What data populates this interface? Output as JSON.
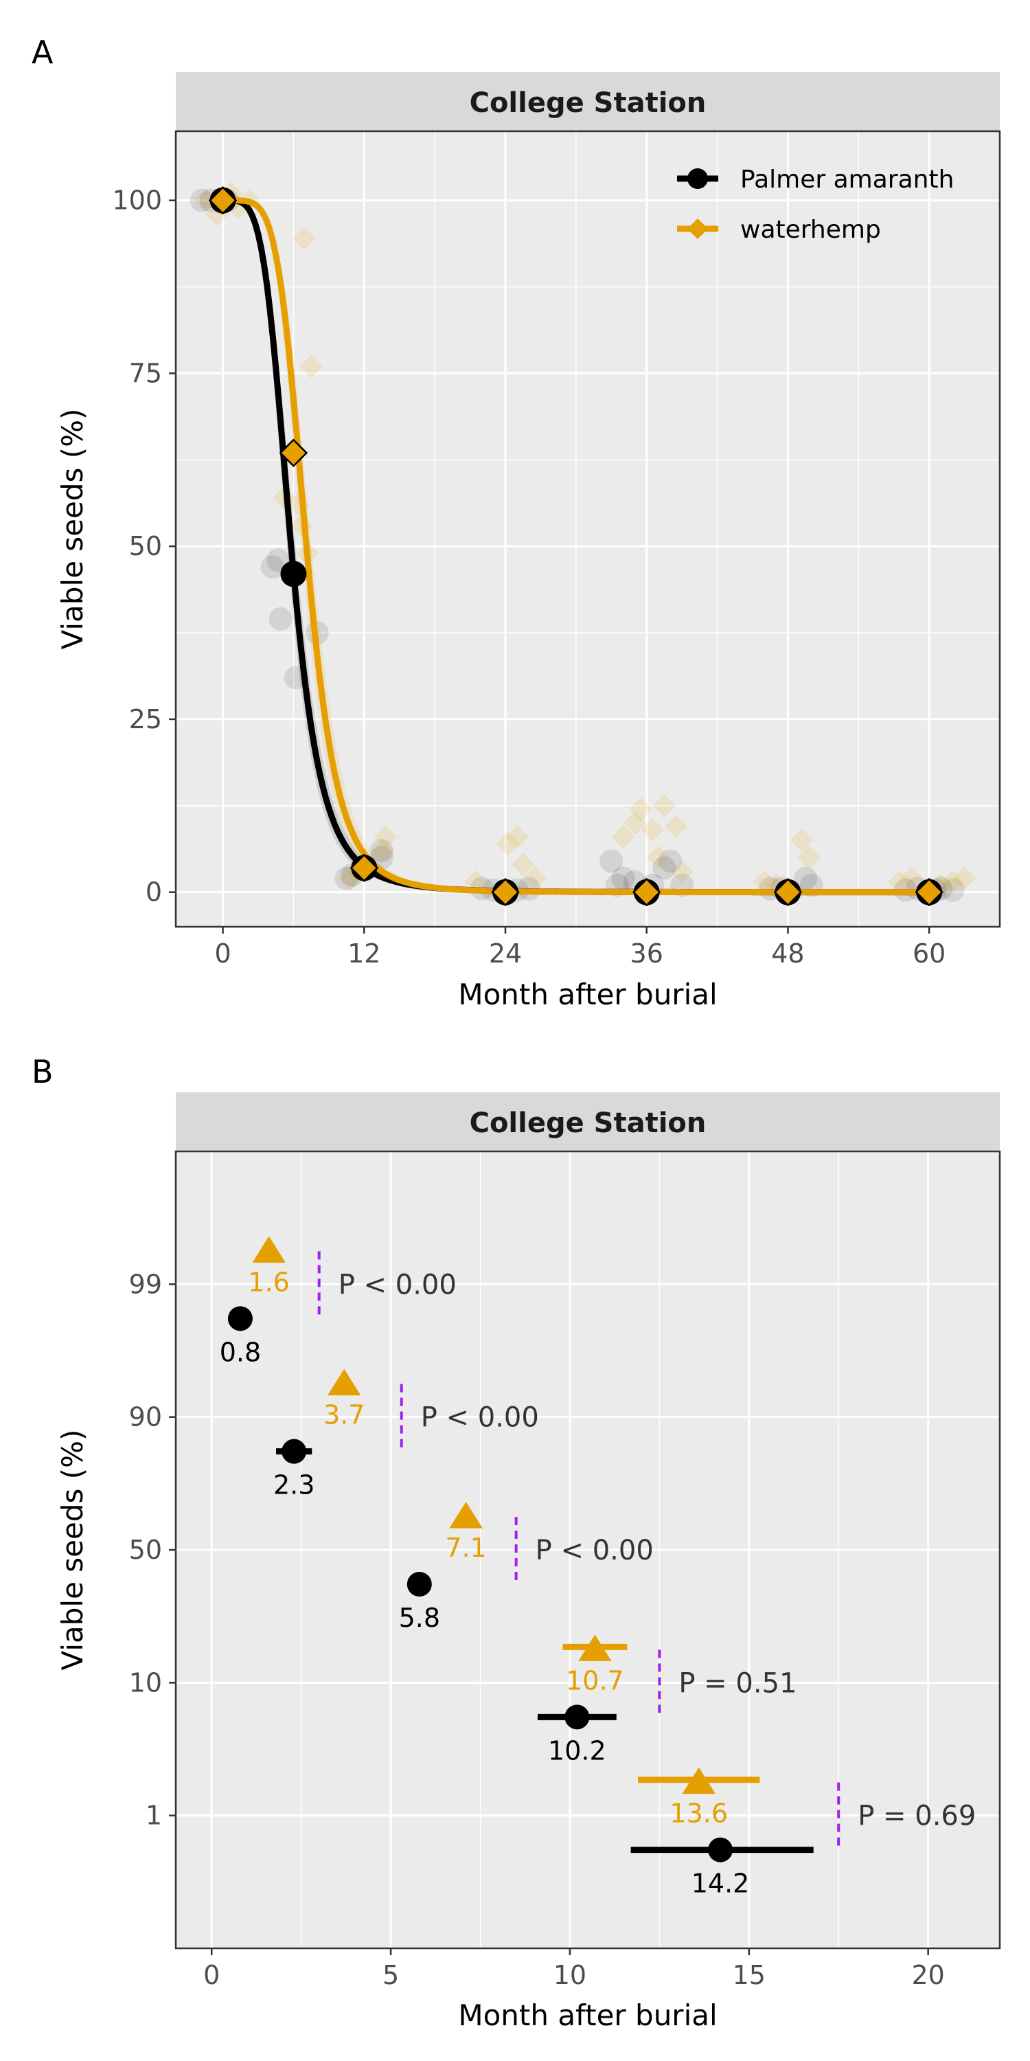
{
  "colors": {
    "palmer": "#000000",
    "waterhemp": "#E69F00",
    "pvalue_line": "#A020F0",
    "panel_bg": "#EBEBEB",
    "strip_bg": "#D9D9D9",
    "grid": "#FFFFFF"
  },
  "chart_data": [
    {
      "type": "scatter",
      "panel_label": "A",
      "strip_title": "College Station",
      "xlabel": "Month after burial",
      "ylabel": "Viable seeds (%)",
      "xlim": [
        -4,
        66
      ],
      "ylim": [
        -5,
        110
      ],
      "x_ticks": [
        0,
        12,
        24,
        36,
        48,
        60
      ],
      "y_ticks": [
        0,
        25,
        50,
        75,
        100
      ],
      "grid": true,
      "legend_position": "top-right",
      "legend": [
        "Palmer amaranth",
        "waterhemp"
      ],
      "series": [
        {
          "name": "Palmer amaranth",
          "marker": "circle",
          "fit": {
            "model": "log-logistic",
            "e50": 5.8,
            "slope": 4.5
          },
          "means": [
            {
              "x": 0,
              "y": 100
            },
            {
              "x": 6,
              "y": 46
            },
            {
              "x": 12,
              "y": 3.5
            },
            {
              "x": 24,
              "y": 0
            },
            {
              "x": 36,
              "y": 0
            },
            {
              "x": 48,
              "y": 0
            },
            {
              "x": 60,
              "y": 0
            }
          ],
          "raw": [
            {
              "x": -1.8,
              "y": 100
            },
            {
              "x": -1,
              "y": 100
            },
            {
              "x": 0.4,
              "y": 100
            },
            {
              "x": 4.2,
              "y": 47
            },
            {
              "x": 4.7,
              "y": 48
            },
            {
              "x": 4.9,
              "y": 39.5
            },
            {
              "x": 6.2,
              "y": 31
            },
            {
              "x": 8,
              "y": 37.5
            },
            {
              "x": 10.5,
              "y": 2
            },
            {
              "x": 11,
              "y": 2.5
            },
            {
              "x": 13.5,
              "y": 6
            },
            {
              "x": 13.5,
              "y": 5
            },
            {
              "x": 22,
              "y": 0.5
            },
            {
              "x": 23,
              "y": 0.3
            },
            {
              "x": 25,
              "y": 0.3
            },
            {
              "x": 26,
              "y": 0.5
            },
            {
              "x": 33,
              "y": 4.5
            },
            {
              "x": 33.5,
              "y": 1
            },
            {
              "x": 34,
              "y": 2
            },
            {
              "x": 35,
              "y": 1.5
            },
            {
              "x": 36.5,
              "y": 1
            },
            {
              "x": 37.5,
              "y": 3.5
            },
            {
              "x": 38,
              "y": 4.5
            },
            {
              "x": 39,
              "y": 1
            },
            {
              "x": 46.5,
              "y": 0.5
            },
            {
              "x": 47.5,
              "y": 0.5
            },
            {
              "x": 49.5,
              "y": 2
            },
            {
              "x": 50,
              "y": 1
            },
            {
              "x": 58,
              "y": 0.3
            },
            {
              "x": 59,
              "y": 0.5
            },
            {
              "x": 60.5,
              "y": 0.3
            },
            {
              "x": 61,
              "y": 0.5
            },
            {
              "x": 62,
              "y": 0.3
            }
          ]
        },
        {
          "name": "waterhemp",
          "marker": "diamond",
          "fit": {
            "model": "log-logistic",
            "e50": 7.1,
            "slope": 5.4
          },
          "means": [
            {
              "x": 0,
              "y": 100
            },
            {
              "x": 6,
              "y": 63.5
            },
            {
              "x": 12,
              "y": 3.5
            },
            {
              "x": 24,
              "y": 0
            },
            {
              "x": 36,
              "y": 0
            },
            {
              "x": 48,
              "y": 0
            },
            {
              "x": 60,
              "y": 0
            }
          ],
          "raw": [
            {
              "x": -1.5,
              "y": 100
            },
            {
              "x": -0.5,
              "y": 98
            },
            {
              "x": 0.7,
              "y": 101
            },
            {
              "x": 1.3,
              "y": 99
            },
            {
              "x": 2.2,
              "y": 100
            },
            {
              "x": 5.2,
              "y": 57
            },
            {
              "x": 6.4,
              "y": 56
            },
            {
              "x": 6.7,
              "y": 53
            },
            {
              "x": 6.9,
              "y": 94.5
            },
            {
              "x": 7.5,
              "y": 76
            },
            {
              "x": 7.2,
              "y": 49
            },
            {
              "x": 10.8,
              "y": 2
            },
            {
              "x": 11.5,
              "y": 3
            },
            {
              "x": 13.8,
              "y": 8
            },
            {
              "x": 13.6,
              "y": 6
            },
            {
              "x": 21.5,
              "y": 1.5
            },
            {
              "x": 24.2,
              "y": 7
            },
            {
              "x": 25,
              "y": 8
            },
            {
              "x": 25.5,
              "y": 4
            },
            {
              "x": 26.5,
              "y": 2
            },
            {
              "x": 34,
              "y": 8
            },
            {
              "x": 35,
              "y": 10
            },
            {
              "x": 35.5,
              "y": 12
            },
            {
              "x": 36.5,
              "y": 9
            },
            {
              "x": 37,
              "y": 5
            },
            {
              "x": 37.5,
              "y": 12.5
            },
            {
              "x": 38.5,
              "y": 9.5
            },
            {
              "x": 39,
              "y": 3
            },
            {
              "x": 46,
              "y": 1.5
            },
            {
              "x": 47,
              "y": 1
            },
            {
              "x": 49.2,
              "y": 7.5
            },
            {
              "x": 49.8,
              "y": 5
            },
            {
              "x": 57.5,
              "y": 1.5
            },
            {
              "x": 58.5,
              "y": 2
            },
            {
              "x": 61,
              "y": 1
            },
            {
              "x": 62,
              "y": 1.5
            },
            {
              "x": 63,
              "y": 2
            }
          ]
        }
      ]
    },
    {
      "type": "scatter",
      "panel_label": "B",
      "strip_title": "College Station",
      "xlabel": "Month after burial",
      "ylabel": "Viable seeds (%)",
      "xlim": [
        -1,
        22
      ],
      "x_ticks": [
        0,
        5,
        10,
        15,
        20
      ],
      "y_categories": [
        "1",
        "10",
        "50",
        "90",
        "99"
      ],
      "grid": true,
      "series": [
        {
          "name": "Palmer amaranth",
          "marker": "circle",
          "estimates": [
            {
              "level": "99",
              "x": 0.8,
              "label": "0.8",
              "lo": 0.8,
              "hi": 0.8
            },
            {
              "level": "90",
              "x": 2.3,
              "label": "2.3",
              "lo": 1.8,
              "hi": 2.8
            },
            {
              "level": "50",
              "x": 5.8,
              "label": "5.8",
              "lo": 5.8,
              "hi": 5.8
            },
            {
              "level": "10",
              "x": 10.2,
              "label": "10.2",
              "lo": 9.1,
              "hi": 11.3
            },
            {
              "level": "1",
              "x": 14.2,
              "label": "14.2",
              "lo": 11.7,
              "hi": 16.8
            }
          ]
        },
        {
          "name": "waterhemp",
          "marker": "triangle",
          "estimates": [
            {
              "level": "99",
              "x": 1.6,
              "label": "1.6",
              "lo": 1.6,
              "hi": 1.6
            },
            {
              "level": "90",
              "x": 3.7,
              "label": "3.7",
              "lo": 3.7,
              "hi": 3.7
            },
            {
              "level": "50",
              "x": 7.1,
              "label": "7.1",
              "lo": 7.1,
              "hi": 7.1
            },
            {
              "level": "10",
              "x": 10.7,
              "label": "10.7",
              "lo": 9.8,
              "hi": 11.6
            },
            {
              "level": "1",
              "x": 13.6,
              "label": "13.6",
              "lo": 11.9,
              "hi": 15.3
            }
          ]
        }
      ],
      "pvalues": [
        {
          "level": "99",
          "x": 3.0,
          "text": "P < 0.00"
        },
        {
          "level": "90",
          "x": 5.3,
          "text": "P < 0.00"
        },
        {
          "level": "50",
          "x": 8.5,
          "text": "P < 0.00"
        },
        {
          "level": "10",
          "x": 12.5,
          "text": "P = 0.51"
        },
        {
          "level": "1",
          "x": 17.5,
          "text": "P = 0.69"
        }
      ]
    }
  ]
}
